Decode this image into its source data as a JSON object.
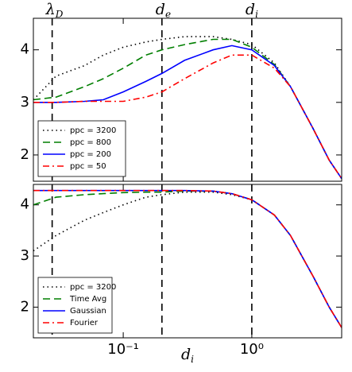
{
  "chart_data": [
    {
      "type": "line",
      "xscale": "log",
      "xlim": [
        0.02,
        5
      ],
      "ylim": [
        1.5,
        4.6
      ],
      "yticks": [
        2,
        3,
        4
      ],
      "xticks": [
        0.1,
        1
      ],
      "x": [
        0.02,
        0.03,
        0.05,
        0.07,
        0.1,
        0.15,
        0.2,
        0.3,
        0.5,
        0.7,
        1.0,
        1.5,
        2,
        3,
        4,
        5
      ],
      "vlines": [
        {
          "x": 0.028,
          "label": "λ",
          "sub": "D"
        },
        {
          "x": 0.2,
          "label": "d",
          "sub": "e"
        },
        {
          "x": 1.0,
          "label": "d",
          "sub": "i"
        }
      ],
      "legend": "lower left",
      "series": [
        {
          "name": "ppc = 3200",
          "color": "#000000",
          "style": "dotted",
          "values": [
            3.05,
            3.5,
            3.7,
            3.9,
            4.05,
            4.15,
            4.2,
            4.25,
            4.25,
            4.2,
            4.1,
            3.75,
            3.3,
            2.5,
            1.9,
            1.55
          ]
        },
        {
          "name": "ppc = 800",
          "color": "#007f00",
          "style": "dashed",
          "values": [
            3.05,
            3.1,
            3.3,
            3.45,
            3.65,
            3.9,
            4.0,
            4.1,
            4.2,
            4.2,
            4.05,
            3.72,
            3.3,
            2.5,
            1.9,
            1.55
          ]
        },
        {
          "name": "ppc = 200",
          "color": "#0000ff",
          "style": "solid",
          "values": [
            3.0,
            3.0,
            3.02,
            3.05,
            3.2,
            3.4,
            3.55,
            3.8,
            4.0,
            4.08,
            4.0,
            3.7,
            3.3,
            2.5,
            1.9,
            1.55
          ]
        },
        {
          "name": "ppc = 50",
          "color": "#ff0000",
          "style": "dashdot",
          "values": [
            3.0,
            3.0,
            3.02,
            3.02,
            3.02,
            3.1,
            3.2,
            3.45,
            3.75,
            3.9,
            3.9,
            3.65,
            3.3,
            2.5,
            1.9,
            1.55
          ]
        }
      ]
    },
    {
      "type": "line",
      "xscale": "log",
      "xlim": [
        0.02,
        5
      ],
      "ylim": [
        1.4,
        4.4
      ],
      "yticks": [
        2,
        3,
        4
      ],
      "xticks": [
        {
          "value": 0.1,
          "label": "10⁻¹"
        },
        {
          "value": 1,
          "label": "10⁰"
        }
      ],
      "xlabel": {
        "text": "d",
        "sub": "i"
      },
      "x": [
        0.02,
        0.03,
        0.05,
        0.07,
        0.1,
        0.15,
        0.2,
        0.3,
        0.5,
        0.7,
        1.0,
        1.5,
        2,
        3,
        4,
        5
      ],
      "vlines": [
        {
          "x": 0.028
        },
        {
          "x": 0.2
        },
        {
          "x": 1.0
        }
      ],
      "legend": "lower left",
      "series": [
        {
          "name": "ppc = 3200",
          "color": "#000000",
          "style": "dotted",
          "values": [
            3.1,
            3.4,
            3.7,
            3.85,
            4.0,
            4.15,
            4.2,
            4.25,
            4.25,
            4.2,
            4.1,
            3.8,
            3.4,
            2.6,
            2.0,
            1.6
          ]
        },
        {
          "name": "Time Avg",
          "color": "#007f00",
          "style": "dashed",
          "values": [
            4.0,
            4.15,
            4.2,
            4.22,
            4.24,
            4.25,
            4.25,
            4.27,
            4.27,
            4.22,
            4.1,
            3.8,
            3.4,
            2.6,
            2.0,
            1.6
          ]
        },
        {
          "name": "Gaussian",
          "color": "#0000ff",
          "style": "solid",
          "values": [
            4.28,
            4.28,
            4.28,
            4.28,
            4.28,
            4.28,
            4.28,
            4.28,
            4.27,
            4.22,
            4.1,
            3.8,
            3.4,
            2.6,
            2.0,
            1.6
          ]
        },
        {
          "name": "Fourier",
          "color": "#ff0000",
          "style": "dashdot",
          "values": [
            4.28,
            4.28,
            4.28,
            4.28,
            4.28,
            4.28,
            4.28,
            4.28,
            4.27,
            4.22,
            4.1,
            3.8,
            3.4,
            2.6,
            2.0,
            1.6
          ]
        }
      ]
    }
  ]
}
